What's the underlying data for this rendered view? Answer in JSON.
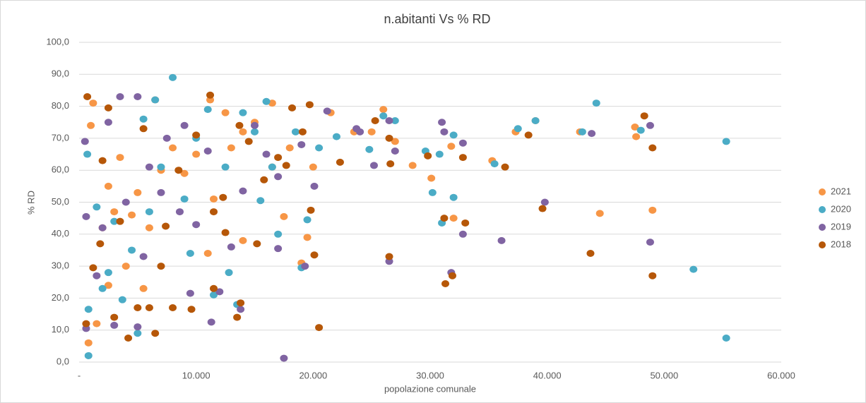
{
  "chart_data": {
    "type": "scatter",
    "title": "n.abitanti Vs % RD",
    "xlabel": "popolazione comunale",
    "ylabel": "% RD",
    "xlim": [
      0,
      60000
    ],
    "ylim": [
      0,
      100
    ],
    "xticks": [
      {
        "value": 0,
        "label": "-"
      },
      {
        "value": 10000,
        "label": "10.000"
      },
      {
        "value": 20000,
        "label": "20.000"
      },
      {
        "value": 30000,
        "label": "30.000"
      },
      {
        "value": 40000,
        "label": "40.000"
      },
      {
        "value": 50000,
        "label": "50.000"
      },
      {
        "value": 60000,
        "label": "60.000"
      }
    ],
    "yticks": [
      {
        "value": 0,
        "label": "0,0"
      },
      {
        "value": 10,
        "label": "10,0"
      },
      {
        "value": 20,
        "label": "20,0"
      },
      {
        "value": 30,
        "label": "30,0"
      },
      {
        "value": 40,
        "label": "40,0"
      },
      {
        "value": 50,
        "label": "50,0"
      },
      {
        "value": 60,
        "label": "60,0"
      },
      {
        "value": 70,
        "label": "70,0"
      },
      {
        "value": 80,
        "label": "80,0"
      },
      {
        "value": 90,
        "label": "90,0"
      },
      {
        "value": 100,
        "label": "100,0"
      }
    ],
    "grid": true,
    "legend": "right",
    "series": [
      {
        "name": "2021",
        "color": "#f79646",
        "x": [
          49000,
          44500,
          35300,
          37300,
          39000,
          42800,
          47500,
          47600,
          32000,
          30100,
          31800,
          28500,
          26000,
          25000,
          23500,
          21500,
          19500,
          19000,
          17500,
          20000,
          16500,
          14000,
          12500,
          11200,
          11500,
          9000,
          8000,
          6500,
          5000,
          4500,
          3000,
          2000,
          1500,
          800,
          1200,
          2500,
          4000,
          3500,
          6000,
          7000,
          10000,
          13000,
          15000,
          16500,
          18000,
          11000,
          14000,
          5500,
          2500,
          1000,
          27000
        ],
        "values": [
          47.5,
          46.5,
          63,
          72,
          75.5,
          72,
          73.5,
          70.5,
          45,
          57.5,
          67.5,
          61.5,
          79,
          72,
          72,
          78,
          39,
          31,
          45.5,
          61,
          81,
          72,
          78,
          82,
          51,
          59,
          67,
          82,
          53,
          46,
          47,
          42,
          12,
          6,
          81,
          55,
          30,
          64,
          42,
          60,
          65,
          67,
          75,
          61,
          67,
          34,
          38,
          23,
          24,
          74,
          69
        ]
      },
      {
        "name": "2020",
        "color": "#4bacc6",
        "x": [
          55300,
          55300,
          52500,
          44200,
          43000,
          48000,
          39000,
          37500,
          35500,
          32000,
          31000,
          30200,
          29600,
          30800,
          32000,
          27000,
          26000,
          24800,
          22000,
          20500,
          19000,
          19500,
          17000,
          16500,
          16000,
          15500,
          13500,
          12800,
          11500,
          9500,
          8000,
          7000,
          5500,
          5000,
          3700,
          2000,
          1500,
          800,
          800,
          700,
          3000,
          4500,
          6500,
          10000,
          12500,
          14000,
          15000,
          18500,
          9000,
          6000,
          2500,
          11000
        ],
        "values": [
          69,
          7.5,
          29,
          81,
          72,
          72.5,
          75.5,
          73,
          62,
          51.5,
          43.5,
          53,
          66,
          65,
          71,
          75.5,
          77,
          66.5,
          70.5,
          67,
          29.5,
          44.5,
          40,
          61,
          81.5,
          50.5,
          18,
          28,
          21,
          34,
          89,
          61,
          76,
          9,
          19.5,
          23,
          48.5,
          16.5,
          2,
          65,
          44,
          35,
          82,
          70,
          61,
          78,
          72,
          72,
          51,
          47,
          28,
          79
        ]
      },
      {
        "name": "2019",
        "color": "#8064a2",
        "x": [
          48800,
          48800,
          43800,
          39800,
          36100,
          32800,
          32800,
          31800,
          31000,
          31200,
          26500,
          26500,
          25200,
          23700,
          21200,
          20100,
          19300,
          17500,
          17000,
          16000,
          14000,
          13800,
          12000,
          11300,
          10000,
          9500,
          8600,
          7000,
          6000,
          5000,
          5000,
          3500,
          3000,
          2000,
          1500,
          600,
          600,
          500,
          2500,
          4000,
          5500,
          7500,
          9000,
          11000,
          13000,
          15000,
          17000,
          19000,
          24000,
          27000
        ],
        "values": [
          74,
          37.5,
          71.5,
          50,
          38,
          40,
          68.5,
          28,
          75,
          72,
          31.5,
          75.5,
          61.5,
          73,
          78.5,
          55,
          30,
          1.2,
          35.5,
          65,
          53.5,
          16.5,
          22,
          12.5,
          43,
          21.5,
          47,
          53,
          61,
          83,
          11,
          83,
          11.5,
          42,
          27,
          10.5,
          45.5,
          69,
          75,
          50,
          33,
          70,
          74,
          66,
          36,
          74,
          58,
          68,
          72,
          66
        ]
      },
      {
        "name": "2018",
        "color": "#b65708",
        "x": [
          49000,
          49000,
          48300,
          43700,
          39600,
          38400,
          36400,
          33000,
          32800,
          31900,
          31200,
          31300,
          29800,
          26500,
          26600,
          26500,
          25300,
          22300,
          20500,
          20100,
          19800,
          19700,
          19100,
          18200,
          17700,
          17000,
          15200,
          13500,
          13800,
          13700,
          12500,
          11200,
          11500,
          10000,
          9600,
          8500,
          8000,
          7400,
          6500,
          6000,
          5000,
          4200,
          3000,
          2500,
          1800,
          700,
          600,
          1200,
          2000,
          3500,
          5500,
          7000,
          11500,
          12300,
          14500,
          15800
        ],
        "values": [
          27,
          67,
          77,
          34,
          48,
          71,
          61,
          43.5,
          64,
          27,
          45,
          24.5,
          64.5,
          33,
          62,
          70,
          75.5,
          62.5,
          10.8,
          33.5,
          47.5,
          80.5,
          72,
          79.5,
          61.5,
          64,
          37,
          14,
          18.5,
          74,
          40.5,
          83.5,
          23,
          71,
          16.5,
          60,
          17,
          42.5,
          9,
          17,
          17,
          7.5,
          14,
          79.5,
          37,
          83,
          12,
          29.5,
          63,
          44,
          73,
          30,
          47,
          51.5,
          69,
          57
        ]
      }
    ]
  }
}
